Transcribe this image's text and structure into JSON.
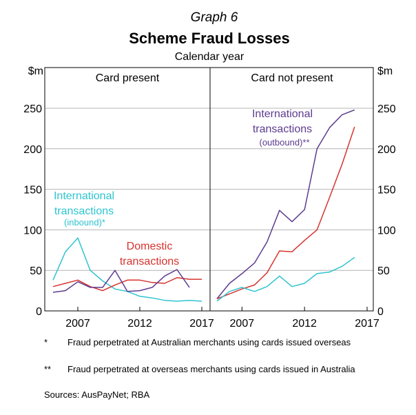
{
  "header": {
    "graph_number": "Graph 6",
    "title": "Scheme Fraud Losses",
    "subtitle": "Calendar year"
  },
  "axes": {
    "left_unit": "$m",
    "right_unit": "$m"
  },
  "chart_data": [
    {
      "type": "line",
      "panel_title": "Card present",
      "x": [
        2005,
        2006,
        2007,
        2008,
        2009,
        2010,
        2011,
        2012,
        2013,
        2014,
        2015,
        2016,
        2017
      ],
      "x_ticks": [
        2007,
        2012,
        2017
      ],
      "ylim": [
        0,
        250
      ],
      "y_ticks": [
        0,
        50,
        100,
        150,
        200,
        250
      ],
      "grid": true,
      "series": [
        {
          "label_lines": [
            "International",
            "transactions"
          ],
          "label_note": "(inbound)*",
          "color": "#2ec4d0",
          "values": [
            38,
            73,
            90,
            50,
            37,
            27,
            24,
            18,
            16,
            13,
            12,
            13,
            12
          ]
        },
        {
          "label_lines": [
            "Domestic",
            "transactions"
          ],
          "label_note": "",
          "color": "#d6332e",
          "values": [
            30,
            34,
            38,
            30,
            25,
            32,
            38,
            38,
            35,
            34,
            41,
            39,
            39
          ]
        },
        {
          "label_lines": [],
          "label_note": "",
          "color": "#5c3b8f",
          "values": [
            23,
            25,
            36,
            29,
            29,
            50,
            24,
            25,
            29,
            43,
            51,
            29,
            null
          ]
        }
      ]
    },
    {
      "type": "line",
      "panel_title": "Card not present",
      "x": [
        2005,
        2006,
        2007,
        2008,
        2009,
        2010,
        2011,
        2012,
        2013,
        2014,
        2015,
        2016,
        2017
      ],
      "x_ticks": [
        2007,
        2012,
        2017
      ],
      "ylim": [
        0,
        250
      ],
      "y_ticks": [
        0,
        50,
        100,
        150,
        200,
        250
      ],
      "grid": true,
      "series": [
        {
          "label_lines": [
            "International",
            "transactions"
          ],
          "label_note": "(outbound)**",
          "color": "#5c3b8f",
          "values": [
            15,
            34,
            46,
            59,
            85,
            124,
            110,
            125,
            200,
            226,
            242,
            248,
            null
          ]
        },
        {
          "label_lines": [],
          "label_note": "",
          "color": "#d6332e",
          "values": [
            15,
            21,
            27,
            32,
            47,
            74,
            73,
            87,
            100,
            140,
            181,
            227,
            null
          ]
        },
        {
          "label_lines": [],
          "label_note": "",
          "color": "#2ec4d0",
          "values": [
            12,
            24,
            29,
            24,
            30,
            43,
            30,
            34,
            46,
            48,
            55,
            66,
            null
          ]
        }
      ]
    }
  ],
  "footnotes": [
    {
      "mark": "*",
      "text": "Fraud perpetrated at Australian merchants using cards issued overseas"
    },
    {
      "mark": "**",
      "text": "Fraud perpetrated at overseas merchants using cards issued in Australia"
    }
  ],
  "sources": "Sources:   AusPayNet; RBA",
  "colors": {
    "grid": "#b4b4b4",
    "frame": "#000000",
    "cyan": "#2ec4d0",
    "red": "#d6332e",
    "purple": "#5c3b8f"
  }
}
